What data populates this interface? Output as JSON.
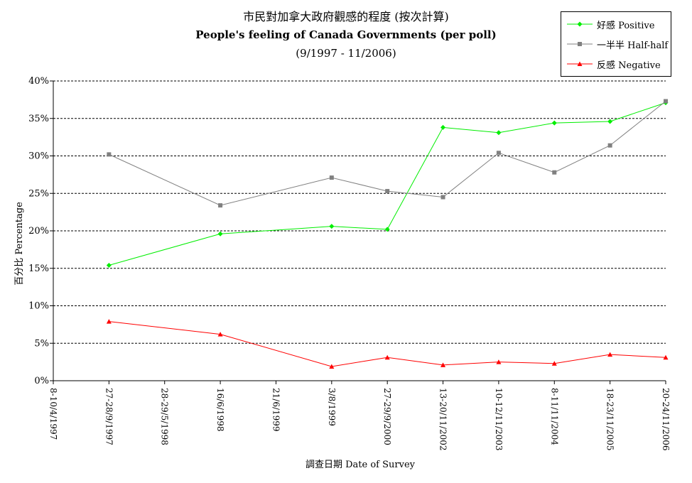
{
  "chart_data": {
    "type": "line",
    "title": "市民對加拿大政府觀感的程度 (按次計算)",
    "subtitle": "People's feeling of Canada Governments (per poll)",
    "period": "(9/1997 - 11/2006)",
    "xlabel": "調查日期 Date of Survey",
    "ylabel": "百分比 Percentage",
    "ylim": [
      0,
      40
    ],
    "y_ticks": [
      "0%",
      "5%",
      "10%",
      "15%",
      "20%",
      "25%",
      "30%",
      "35%",
      "40%"
    ],
    "y_tick_values": [
      0,
      5,
      10,
      15,
      20,
      25,
      30,
      35,
      40
    ],
    "categories": [
      "8-10/4/1997",
      "27-28/9/1997",
      "28-29/5/1998",
      "16/6/1998",
      "21/6/1999",
      "3/8/1999",
      "27-29/9/2000",
      "13-20/11/2002",
      "10-12/11/2003",
      "8-11/11/2004",
      "18-23/11/2005",
      "20-24/11/2006"
    ],
    "grid": true,
    "legend_position": "top-right",
    "series": [
      {
        "name": "好感 Positive",
        "color": "#00ee00",
        "marker": "diamond",
        "x": [
          "27-28/9/1997",
          "16/6/1998",
          "3/8/1999",
          "27-29/9/2000",
          "13-20/11/2002",
          "10-12/11/2003",
          "8-11/11/2004",
          "18-23/11/2005",
          "20-24/11/2006"
        ],
        "values": [
          15.4,
          19.6,
          20.6,
          20.2,
          33.8,
          33.1,
          34.4,
          34.6,
          37.1
        ]
      },
      {
        "name": "一半半 Half-half",
        "color": "#808080",
        "marker": "square",
        "x": [
          "27-28/9/1997",
          "16/6/1998",
          "3/8/1999",
          "27-29/9/2000",
          "13-20/11/2002",
          "10-12/11/2003",
          "8-11/11/2004",
          "18-23/11/2005",
          "20-24/11/2006"
        ],
        "values": [
          30.2,
          23.4,
          27.1,
          25.3,
          24.5,
          30.4,
          27.8,
          31.4,
          37.3
        ]
      },
      {
        "name": "反感 Negative",
        "color": "#ff0000",
        "marker": "triangle",
        "x": [
          "27-28/9/1997",
          "16/6/1998",
          "3/8/1999",
          "27-29/9/2000",
          "13-20/11/2002",
          "10-12/11/2003",
          "8-11/11/2004",
          "18-23/11/2005",
          "20-24/11/2006"
        ],
        "values": [
          7.9,
          6.2,
          1.9,
          3.1,
          2.1,
          2.5,
          2.3,
          3.5,
          3.1
        ]
      }
    ]
  }
}
